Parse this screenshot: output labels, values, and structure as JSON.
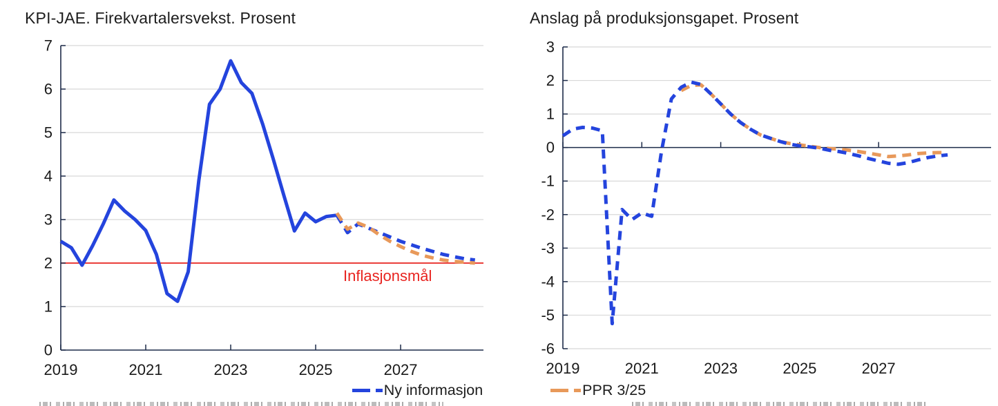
{
  "legend": {
    "items": [
      {
        "label": "Ny informasjon",
        "color": "#2444dd"
      },
      {
        "label": "PPR 3/25",
        "color": "#e8995a"
      }
    ]
  },
  "chart_data": [
    {
      "type": "line",
      "title": "KPI-JAE. Firekvartalersvekst. Prosent",
      "xlabel": "",
      "ylabel": "",
      "xlim": [
        2019,
        2028.95
      ],
      "ylim": [
        0,
        7
      ],
      "y_ticks": [
        0,
        1,
        2,
        3,
        4,
        5,
        6,
        7
      ],
      "x_ticks": [
        2019,
        2021,
        2023,
        2025,
        2027
      ],
      "grid": "horizontal",
      "target_line": {
        "value": 2,
        "label": "Inflasjonsmål",
        "color": "#e8231f"
      },
      "series": [
        {
          "name": "KPI-JAE historisk",
          "color": "#2444dd",
          "dashed": false,
          "start": 2019.0,
          "step": 0.25,
          "values": [
            2.5,
            2.35,
            1.95,
            2.4,
            2.9,
            3.45,
            3.2,
            3.0,
            2.75,
            2.2,
            1.3,
            1.12,
            1.8,
            3.9,
            5.65,
            6.0,
            6.65,
            6.15,
            5.9,
            5.2,
            4.4,
            3.56,
            2.74,
            3.15,
            2.95,
            3.07,
            3.1
          ]
        },
        {
          "name": "Ny informasjon",
          "color": "#2444dd",
          "dashed": true,
          "start": 2025.5,
          "step": 0.25,
          "values": [
            3.1,
            2.7,
            2.9,
            2.8,
            2.7,
            2.6,
            2.5,
            2.42,
            2.34,
            2.27,
            2.2,
            2.15,
            2.1,
            2.07
          ]
        },
        {
          "name": "PPR 3/25",
          "color": "#e8995a",
          "dashed": true,
          "start": 2025.5,
          "step": 0.25,
          "values": [
            3.15,
            2.78,
            2.92,
            2.82,
            2.65,
            2.5,
            2.38,
            2.27,
            2.18,
            2.12,
            2.07,
            2.04,
            2.02,
            2.0
          ]
        }
      ]
    },
    {
      "type": "line",
      "title": "Anslag på produksjonsgapet. Prosent",
      "xlabel": "",
      "ylabel": "",
      "xlim": [
        2019,
        2029.85
      ],
      "ylim": [
        -6,
        3
      ],
      "y_ticks": [
        -6,
        -5,
        -4,
        -3,
        -2,
        -1,
        0,
        1,
        2,
        3
      ],
      "x_ticks": [
        2019,
        2021,
        2023,
        2025,
        2027
      ],
      "grid": "horizontal",
      "zero_axis": true,
      "series": [
        {
          "name": "PPR 3/25",
          "color": "#e8995a",
          "dashed": true,
          "start": 2022.0,
          "step": 0.25,
          "values": [
            1.7,
            1.85,
            1.87,
            1.6,
            1.3,
            1.0,
            0.75,
            0.55,
            0.38,
            0.28,
            0.18,
            0.12,
            0.08,
            0.04,
            0.0,
            -0.03,
            -0.05,
            -0.08,
            -0.12,
            -0.17,
            -0.22,
            -0.27,
            -0.25,
            -0.22,
            -0.18,
            -0.16,
            -0.15,
            -0.15
          ]
        },
        {
          "name": "Ny informasjon",
          "color": "#2444dd",
          "dashed": true,
          "start": 2019.0,
          "step": 0.25,
          "values": [
            0.35,
            0.55,
            0.6,
            0.58,
            0.5,
            -5.25,
            -1.85,
            -2.15,
            -1.95,
            -2.05,
            -0.1,
            1.45,
            1.8,
            1.95,
            1.88,
            1.6,
            1.3,
            1.0,
            0.75,
            0.55,
            0.38,
            0.28,
            0.18,
            0.1,
            0.05,
            0.02,
            -0.02,
            -0.08,
            -0.12,
            -0.18,
            -0.25,
            -0.33,
            -0.4,
            -0.47,
            -0.5,
            -0.45,
            -0.37,
            -0.3,
            -0.25,
            -0.22
          ]
        }
      ]
    }
  ]
}
